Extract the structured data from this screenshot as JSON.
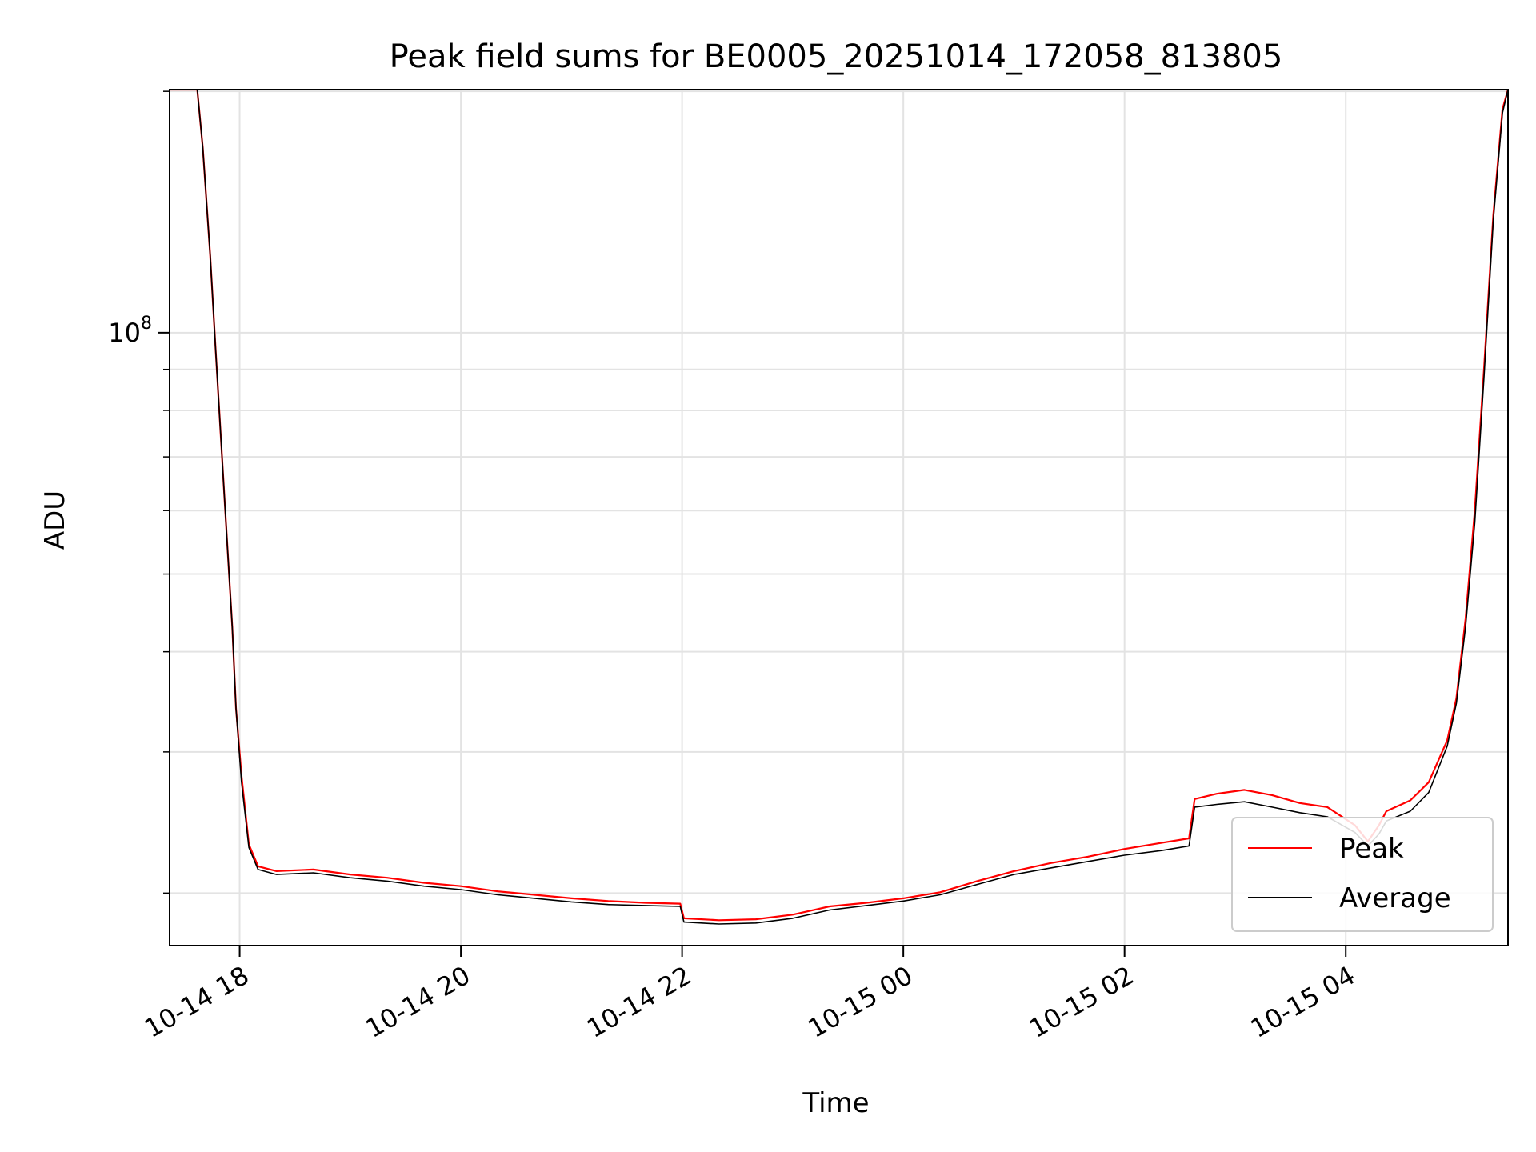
{
  "chart_data": {
    "type": "line",
    "title": "Peak field sums for BE0005_20251014_172058_813805",
    "xlabel": "Time",
    "ylabel": "ADU",
    "x_type": "datetime",
    "xlim": [
      "2025-10-14 17:22",
      "2025-10-15 05:28"
    ],
    "y_scale": "log",
    "ylim": [
      17200000,
      201000000
    ],
    "x_ticks": [
      {
        "value": "2025-10-14 18:00",
        "label": "10-14 18"
      },
      {
        "value": "2025-10-14 20:00",
        "label": "10-14 20"
      },
      {
        "value": "2025-10-14 22:00",
        "label": "10-14 22"
      },
      {
        "value": "2025-10-15 00:00",
        "label": "10-15 00"
      },
      {
        "value": "2025-10-15 02:00",
        "label": "10-15 02"
      },
      {
        "value": "2025-10-15 04:00",
        "label": "10-15 04"
      }
    ],
    "y_major_ticks": [
      {
        "value": 100000000,
        "label": "10",
        "exponent": "8"
      }
    ],
    "y_minor_ticks": [
      20000000,
      30000000,
      40000000,
      50000000,
      60000000,
      70000000,
      80000000,
      90000000,
      200000000
    ],
    "grid": true,
    "legend_position": "lower-right",
    "series": [
      {
        "name": "Peak",
        "color": "#ff0000",
        "x": [
          "2025-10-14 17:22",
          "2025-10-14 17:37",
          "2025-10-14 17:40",
          "2025-10-14 17:44",
          "2025-10-14 17:47",
          "2025-10-14 17:52",
          "2025-10-14 17:56",
          "2025-10-14 17:58",
          "2025-10-14 18:01",
          "2025-10-14 18:05",
          "2025-10-14 18:10",
          "2025-10-14 18:20",
          "2025-10-14 18:40",
          "2025-10-14 19:00",
          "2025-10-14 19:20",
          "2025-10-14 19:40",
          "2025-10-14 20:00",
          "2025-10-14 20:20",
          "2025-10-14 20:40",
          "2025-10-14 21:00",
          "2025-10-14 21:20",
          "2025-10-14 21:40",
          "2025-10-14 21:59",
          "2025-10-14 22:01",
          "2025-10-14 22:20",
          "2025-10-14 22:40",
          "2025-10-14 23:00",
          "2025-10-14 23:20",
          "2025-10-14 23:40",
          "2025-10-15 00:00",
          "2025-10-15 00:20",
          "2025-10-15 00:40",
          "2025-10-15 01:00",
          "2025-10-15 01:20",
          "2025-10-15 01:40",
          "2025-10-15 02:00",
          "2025-10-15 02:20",
          "2025-10-15 02:35",
          "2025-10-15 02:38",
          "2025-10-15 02:50",
          "2025-10-15 03:05",
          "2025-10-15 03:20",
          "2025-10-15 03:35",
          "2025-10-15 03:50",
          "2025-10-15 04:05",
          "2025-10-15 04:12",
          "2025-10-15 04:18",
          "2025-10-15 04:22",
          "2025-10-15 04:35",
          "2025-10-15 04:45",
          "2025-10-15 04:55",
          "2025-10-15 05:00",
          "2025-10-15 05:05",
          "2025-10-15 05:10",
          "2025-10-15 05:15",
          "2025-10-15 05:20",
          "2025-10-15 05:25",
          "2025-10-15 05:28"
        ],
        "values": [
          201000000,
          201000000,
          170000000,
          125000000,
          95000000,
          61000000,
          43000000,
          34000000,
          28000000,
          23000000,
          21600000,
          21300000,
          21400000,
          21100000,
          20900000,
          20600000,
          20400000,
          20100000,
          19900000,
          19700000,
          19550000,
          19450000,
          19400000,
          18600000,
          18500000,
          18550000,
          18800000,
          19250000,
          19450000,
          19700000,
          20050000,
          20700000,
          21300000,
          21800000,
          22200000,
          22700000,
          23100000,
          23400000,
          26200000,
          26600000,
          26900000,
          26500000,
          25900000,
          25600000,
          24300000,
          23200000,
          24300000,
          25300000,
          26100000,
          27500000,
          31000000,
          35000000,
          44000000,
          60000000,
          90000000,
          140000000,
          190000000,
          201000000
        ]
      },
      {
        "name": "Average",
        "color": "#000000",
        "x": [
          "2025-10-14 17:22",
          "2025-10-14 17:37",
          "2025-10-14 17:40",
          "2025-10-14 17:44",
          "2025-10-14 17:47",
          "2025-10-14 17:52",
          "2025-10-14 17:56",
          "2025-10-14 17:58",
          "2025-10-14 18:01",
          "2025-10-14 18:05",
          "2025-10-14 18:10",
          "2025-10-14 18:20",
          "2025-10-14 18:40",
          "2025-10-14 19:00",
          "2025-10-14 19:20",
          "2025-10-14 19:40",
          "2025-10-14 20:00",
          "2025-10-14 20:20",
          "2025-10-14 20:40",
          "2025-10-14 21:00",
          "2025-10-14 21:20",
          "2025-10-14 21:40",
          "2025-10-14 21:59",
          "2025-10-14 22:01",
          "2025-10-14 22:20",
          "2025-10-14 22:40",
          "2025-10-14 23:00",
          "2025-10-14 23:20",
          "2025-10-14 23:40",
          "2025-10-15 00:00",
          "2025-10-15 00:20",
          "2025-10-15 00:40",
          "2025-10-15 01:00",
          "2025-10-15 01:20",
          "2025-10-15 01:40",
          "2025-10-15 02:00",
          "2025-10-15 02:20",
          "2025-10-15 02:35",
          "2025-10-15 02:38",
          "2025-10-15 02:50",
          "2025-10-15 03:05",
          "2025-10-15 03:20",
          "2025-10-15 03:35",
          "2025-10-15 03:50",
          "2025-10-15 04:05",
          "2025-10-15 04:12",
          "2025-10-15 04:18",
          "2025-10-15 04:22",
          "2025-10-15 04:35",
          "2025-10-15 04:45",
          "2025-10-15 04:55",
          "2025-10-15 05:00",
          "2025-10-15 05:05",
          "2025-10-15 05:10",
          "2025-10-15 05:15",
          "2025-10-15 05:20",
          "2025-10-15 05:25",
          "2025-10-15 05:28"
        ],
        "values": [
          201000000,
          201000000,
          170000000,
          125000000,
          95000000,
          61000000,
          43000000,
          34000000,
          27500000,
          22800000,
          21400000,
          21100000,
          21200000,
          20900000,
          20700000,
          20400000,
          20200000,
          19900000,
          19700000,
          19500000,
          19350000,
          19300000,
          19250000,
          18400000,
          18300000,
          18350000,
          18600000,
          19050000,
          19300000,
          19550000,
          19900000,
          20500000,
          21100000,
          21500000,
          21900000,
          22300000,
          22600000,
          22900000,
          25600000,
          25800000,
          26000000,
          25600000,
          25200000,
          24900000,
          23800000,
          22900000,
          23700000,
          24600000,
          25300000,
          26700000,
          30500000,
          34500000,
          43000000,
          58000000,
          88000000,
          138000000,
          188000000,
          201000000
        ]
      }
    ]
  }
}
